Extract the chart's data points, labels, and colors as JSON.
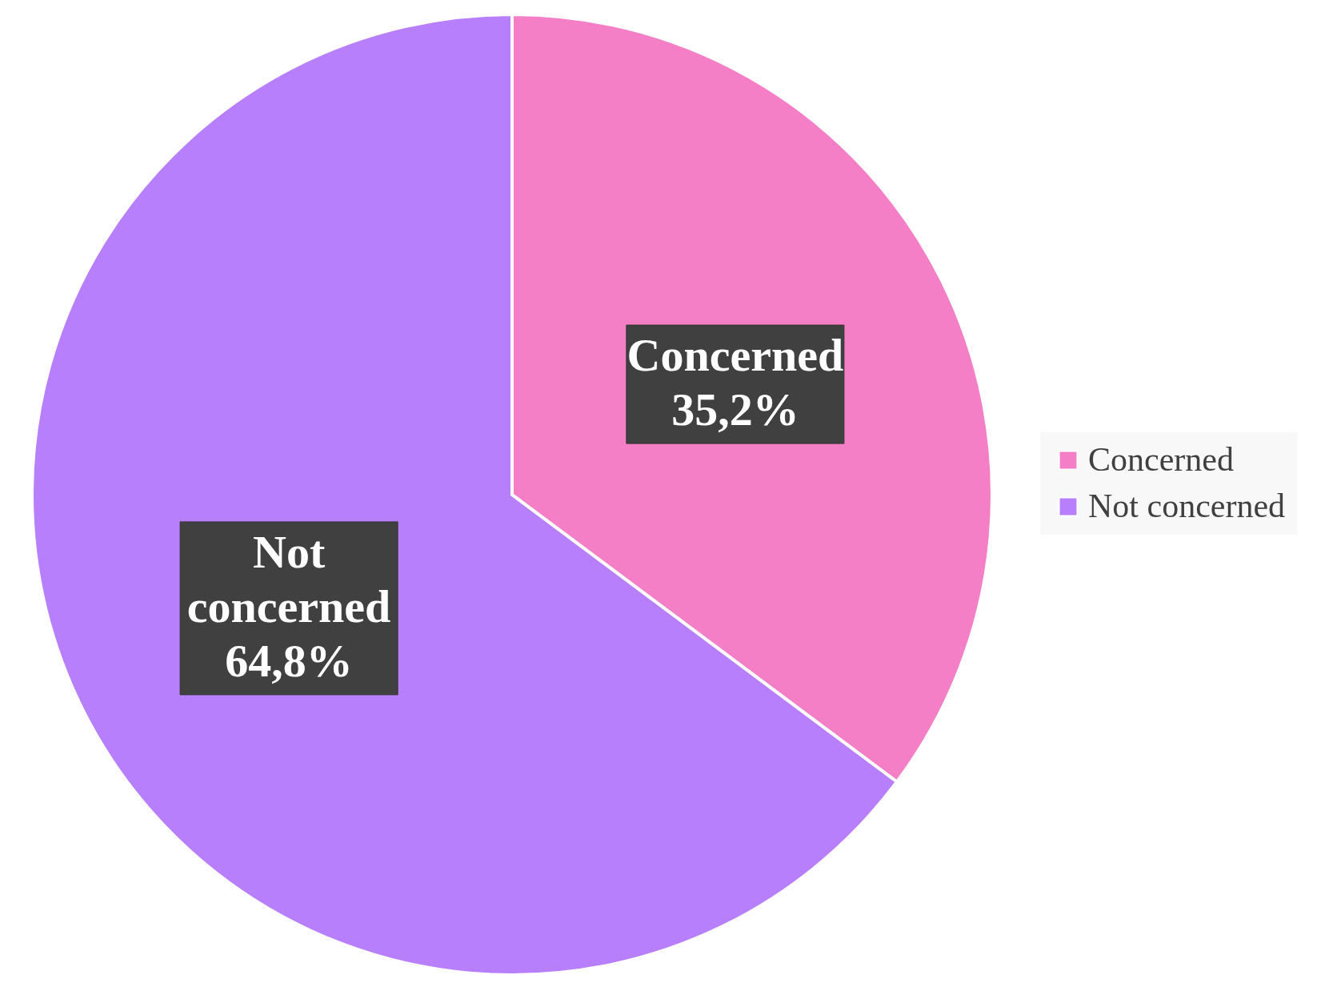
{
  "chart_data": {
    "type": "pie",
    "categories": [
      "Concerned",
      "Not concerned"
    ],
    "values": [
      35.2,
      64.8
    ],
    "colors": [
      "#f47fc6",
      "#b77ffc"
    ],
    "value_labels": [
      "35,2%",
      "64,8%"
    ],
    "legend": "right"
  }
}
